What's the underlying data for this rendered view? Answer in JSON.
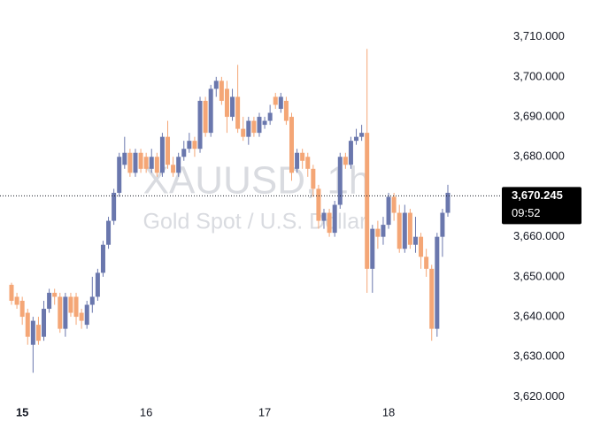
{
  "chart_data": {
    "type": "candlestick",
    "watermark_title": "XAUUSD, 1h",
    "watermark_subtitle": "Gold Spot / U.S. Dollar",
    "up_color": "#6a77ad",
    "down_color": "#f4a676",
    "categories": [
      null,
      null,
      "15",
      null,
      null,
      null,
      null,
      null,
      null,
      null,
      null,
      null,
      null,
      null,
      null,
      null,
      null,
      null,
      null,
      null,
      null,
      null,
      null,
      null,
      null,
      "16",
      null,
      null,
      null,
      null,
      null,
      null,
      null,
      null,
      null,
      null,
      null,
      null,
      null,
      null,
      null,
      null,
      null,
      null,
      null,
      null,
      null,
      "17",
      null,
      null,
      null,
      null,
      null,
      null,
      null,
      null,
      null,
      null,
      null,
      null,
      null,
      null,
      null,
      null,
      null,
      null,
      null,
      null,
      null,
      null,
      "18",
      null,
      null,
      null,
      null,
      null,
      null,
      null,
      null,
      null,
      null,
      null
    ],
    "open": [
      3648,
      3645,
      3644,
      3641,
      3633,
      3638,
      3635,
      3642,
      3646,
      3645,
      3637,
      3645,
      3645,
      3641,
      3638,
      3643,
      3645,
      3651,
      3658,
      3664,
      3671,
      3678,
      3681,
      3676,
      3681,
      3680,
      3677,
      3680,
      3676,
      3685,
      3678,
      3676,
      3680,
      3682,
      3684,
      3682,
      3694,
      3686,
      3697,
      3699,
      3697,
      3690,
      3695,
      3687,
      3685,
      3689,
      3686,
      3688,
      3689,
      3695,
      3692,
      3694,
      3690,
      3677,
      3681,
      3680,
      3677,
      3672,
      3664,
      3666,
      3661,
      3668,
      3680,
      3678,
      3684,
      3685,
      3686,
      3652,
      3662,
      3660,
      3663,
      3670,
      3666,
      3657,
      3666,
      3658,
      3660,
      3655,
      3652,
      3637,
      3660,
      3666
    ],
    "high": [
      3648.5,
      3646,
      3645,
      3642,
      3640,
      3640,
      3644,
      3647,
      3647,
      3646,
      3646,
      3646,
      3646,
      3642,
      3644,
      3650,
      3652,
      3659,
      3665,
      3672,
      3681,
      3685,
      3682,
      3682,
      3682,
      3681,
      3682,
      3681,
      3686,
      3689,
      3680,
      3681,
      3684,
      3686,
      3685,
      3695,
      3695,
      3698,
      3700,
      3700,
      3699,
      3697,
      3703,
      3690,
      3690,
      3690,
      3691,
      3690,
      3693,
      3696,
      3696,
      3695,
      3691,
      3682,
      3682,
      3681,
      3678,
      3673,
      3667,
      3667,
      3669,
      3681,
      3681,
      3685,
      3687,
      3688,
      3707,
      3663,
      3664,
      3665,
      3671,
      3671,
      3668,
      3668,
      3667,
      3665,
      3661,
      3657,
      3653,
      3661,
      3667,
      3673
    ],
    "low": [
      3643,
      3642,
      3638,
      3633,
      3626,
      3633,
      3634,
      3641,
      3643,
      3636,
      3635,
      3640,
      3638,
      3637,
      3637,
      3641,
      3644,
      3650,
      3657,
      3663,
      3670,
      3677,
      3675,
      3675,
      3676,
      3676,
      3676,
      3675,
      3675,
      3677,
      3675,
      3675,
      3679,
      3681,
      3680,
      3681,
      3685,
      3685,
      3695,
      3693,
      3686,
      3689,
      3686,
      3684,
      3683,
      3685,
      3685,
      3687,
      3688,
      3692,
      3691,
      3688,
      3674,
      3676,
      3677,
      3675,
      3670,
      3662,
      3662,
      3660,
      3660,
      3667,
      3677,
      3677,
      3683,
      3684,
      3646,
      3646,
      3657,
      3658,
      3662,
      3664,
      3656,
      3656,
      3657,
      3656,
      3652,
      3650,
      3634,
      3635,
      3655,
      3665
    ],
    "close": [
      3644,
      3643,
      3640,
      3635,
      3639,
      3634,
      3642,
      3646,
      3645,
      3637,
      3645,
      3641,
      3640,
      3639,
      3643,
      3645,
      3651,
      3658,
      3664,
      3671,
      3680,
      3681,
      3676,
      3681,
      3677,
      3677,
      3680,
      3676,
      3685,
      3678,
      3676,
      3680,
      3682,
      3684,
      3682,
      3694,
      3686,
      3697,
      3699,
      3694,
      3690,
      3695,
      3687,
      3685,
      3689,
      3686,
      3690,
      3689,
      3691,
      3693,
      3695,
      3689,
      3676,
      3681,
      3679,
      3677,
      3672,
      3664,
      3666,
      3661,
      3668,
      3680,
      3678,
      3684,
      3685,
      3686,
      3652,
      3662,
      3660,
      3663,
      3670,
      3666,
      3657,
      3666,
      3658,
      3660,
      3655,
      3652,
      3637,
      3660,
      3666,
      3671
    ],
    "ylim": [
      3619,
      3717
    ],
    "yticks": [
      {
        "value": 3620,
        "label": "3,620.000"
      },
      {
        "value": 3630,
        "label": "3,630.000"
      },
      {
        "value": 3640,
        "label": "3,640.000"
      },
      {
        "value": 3650,
        "label": "3,650.000"
      },
      {
        "value": 3660,
        "label": "3,660.000"
      },
      {
        "value": 3670,
        "label": "3,670.000"
      },
      {
        "value": 3680,
        "label": "3,680.000"
      },
      {
        "value": 3690,
        "label": "3,690.000"
      },
      {
        "value": 3700,
        "label": "3,700.000"
      },
      {
        "value": 3710,
        "label": "3,710.000"
      }
    ],
    "current_price": {
      "value": 3670.245,
      "label": "3,670.245"
    },
    "countdown": "09:52"
  }
}
